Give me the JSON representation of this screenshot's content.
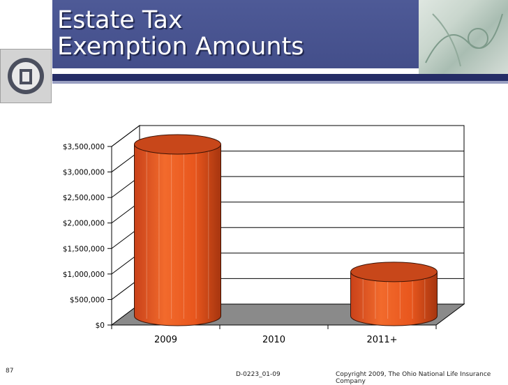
{
  "slide": {
    "title_line1": "Estate Tax",
    "title_line2": "Exemption Amounts",
    "page_number": "87",
    "doc_code": "D-0223_01-09",
    "copyright": "Copyright 2009, The Ohio National Life Insurance Company"
  },
  "chart_data": {
    "type": "bar",
    "categories": [
      "2009",
      "2010",
      "2011+"
    ],
    "values": [
      3500000,
      0,
      1000000
    ],
    "ylim": [
      0,
      3500000
    ],
    "yticks": [
      "$0",
      "$500,000",
      "$1,000,000",
      "$1,500,000",
      "$2,000,000",
      "$2,500,000",
      "$3,000,000",
      "$3,500,000"
    ],
    "grid": true,
    "style": "3d-cylinder",
    "bar_color": "#e8561d",
    "bar_top_color": "#c8471a",
    "floor_color": "#8a8a8a"
  }
}
